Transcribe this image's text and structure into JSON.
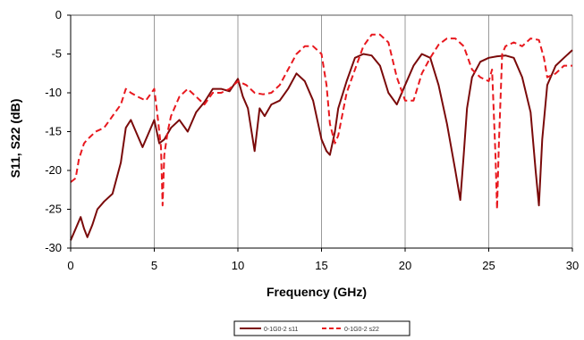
{
  "chart_data": {
    "type": "line",
    "title": "",
    "xlabel": "Frequency (GHz)",
    "ylabel": "S11, S22 (dB)",
    "xlim": [
      0,
      30
    ],
    "ylim": [
      -30,
      0
    ],
    "x_ticks": [
      "0",
      "5",
      "10",
      "15",
      "20",
      "25",
      "30"
    ],
    "y_ticks": [
      "0",
      "-5",
      "-10",
      "-15",
      "-20",
      "-25",
      "-30"
    ],
    "grid": "vertical",
    "legend_position": "bottom",
    "series": [
      {
        "name": "S11",
        "legend_label": "0-1G0-2 s11",
        "color": "#7a0a0a",
        "dash": "solid",
        "x": [
          0,
          0.3,
          0.6,
          0.8,
          1.0,
          1.3,
          1.6,
          2.0,
          2.5,
          3.0,
          3.3,
          3.6,
          4.0,
          4.3,
          4.6,
          5.0,
          5.3,
          5.6,
          6.0,
          6.5,
          7.0,
          7.5,
          8.0,
          8.5,
          9.0,
          9.5,
          10.0,
          10.3,
          10.6,
          11.0,
          11.3,
          11.6,
          12.0,
          12.5,
          13.0,
          13.5,
          14.0,
          14.5,
          15.0,
          15.3,
          15.5,
          15.8,
          16.0,
          16.5,
          17.0,
          17.5,
          18.0,
          18.5,
          19.0,
          19.5,
          20.0,
          20.5,
          21.0,
          21.5,
          22.0,
          22.5,
          23.0,
          23.3,
          23.5,
          23.7,
          24.0,
          24.5,
          25.0,
          25.5,
          26.0,
          26.5,
          27.0,
          27.5,
          27.8,
          28.0,
          28.2,
          28.5,
          29.0,
          29.5,
          30.0
        ],
        "y": [
          -29,
          -27.5,
          -26,
          -27.5,
          -28.6,
          -27,
          -25,
          -24,
          -23,
          -19,
          -14.5,
          -13.5,
          -15.5,
          -17,
          -15.5,
          -13.5,
          -16.5,
          -16,
          -14.5,
          -13.5,
          -15,
          -12.5,
          -11.2,
          -9.5,
          -9.5,
          -9.8,
          -8.2,
          -10.5,
          -12,
          -17.5,
          -12,
          -13,
          -11.5,
          -11,
          -9.5,
          -7.5,
          -8.5,
          -11,
          -16,
          -17.5,
          -18,
          -15,
          -12,
          -8.5,
          -5.5,
          -5,
          -5.2,
          -6.5,
          -10,
          -11.5,
          -9,
          -6.5,
          -5,
          -5.5,
          -9,
          -14,
          -20,
          -23.8,
          -18,
          -12,
          -8,
          -6,
          -5.5,
          -5.3,
          -5.2,
          -5.5,
          -8,
          -12.5,
          -20,
          -24.5,
          -16,
          -9,
          -6.5,
          -5.5,
          -4.5
        ]
      },
      {
        "name": "S22",
        "legend_label": "0-1G0-2 s22",
        "color": "#e8181e",
        "dash": "dashed",
        "x": [
          0,
          0.3,
          0.5,
          0.8,
          1.0,
          1.5,
          2.0,
          2.5,
          3.0,
          3.3,
          3.6,
          4.0,
          4.5,
          5.0,
          5.2,
          5.4,
          5.5,
          5.6,
          5.8,
          6.0,
          6.5,
          7.0,
          7.5,
          8.0,
          8.5,
          9.0,
          9.5,
          10.0,
          10.5,
          11.0,
          11.5,
          12.0,
          12.5,
          13.0,
          13.5,
          14.0,
          14.5,
          15.0,
          15.3,
          15.5,
          15.8,
          16.0,
          16.5,
          17.0,
          17.5,
          18.0,
          18.5,
          19.0,
          19.5,
          20.0,
          20.5,
          21.0,
          21.5,
          22.0,
          22.5,
          23.0,
          23.5,
          24.0,
          24.5,
          25.0,
          25.2,
          25.4,
          25.5,
          25.6,
          25.8,
          26.0,
          26.5,
          27.0,
          27.5,
          28.0,
          28.3,
          28.5,
          29.0,
          29.5,
          30.0
        ],
        "y": [
          -21.5,
          -21,
          -18.5,
          -16.5,
          -16,
          -15,
          -14.5,
          -13,
          -11.5,
          -9.5,
          -10,
          -10.5,
          -11,
          -9.5,
          -13,
          -17,
          -24.5,
          -18,
          -15,
          -13,
          -10.5,
          -9.5,
          -10.5,
          -11.5,
          -10,
          -10,
          -9.5,
          -8.5,
          -9,
          -10,
          -10.2,
          -10,
          -9,
          -7,
          -5,
          -4,
          -4,
          -5,
          -9,
          -14,
          -16.5,
          -15.5,
          -10,
          -7,
          -4,
          -2.5,
          -2.5,
          -3.5,
          -8,
          -11,
          -11,
          -7.5,
          -5.5,
          -3.8,
          -3,
          -3,
          -4,
          -7,
          -8,
          -8.5,
          -7,
          -18,
          -25,
          -17,
          -5,
          -4,
          -3.5,
          -4,
          -3,
          -3.2,
          -5.5,
          -8,
          -7.5,
          -6.5,
          -6.5
        ]
      }
    ]
  }
}
